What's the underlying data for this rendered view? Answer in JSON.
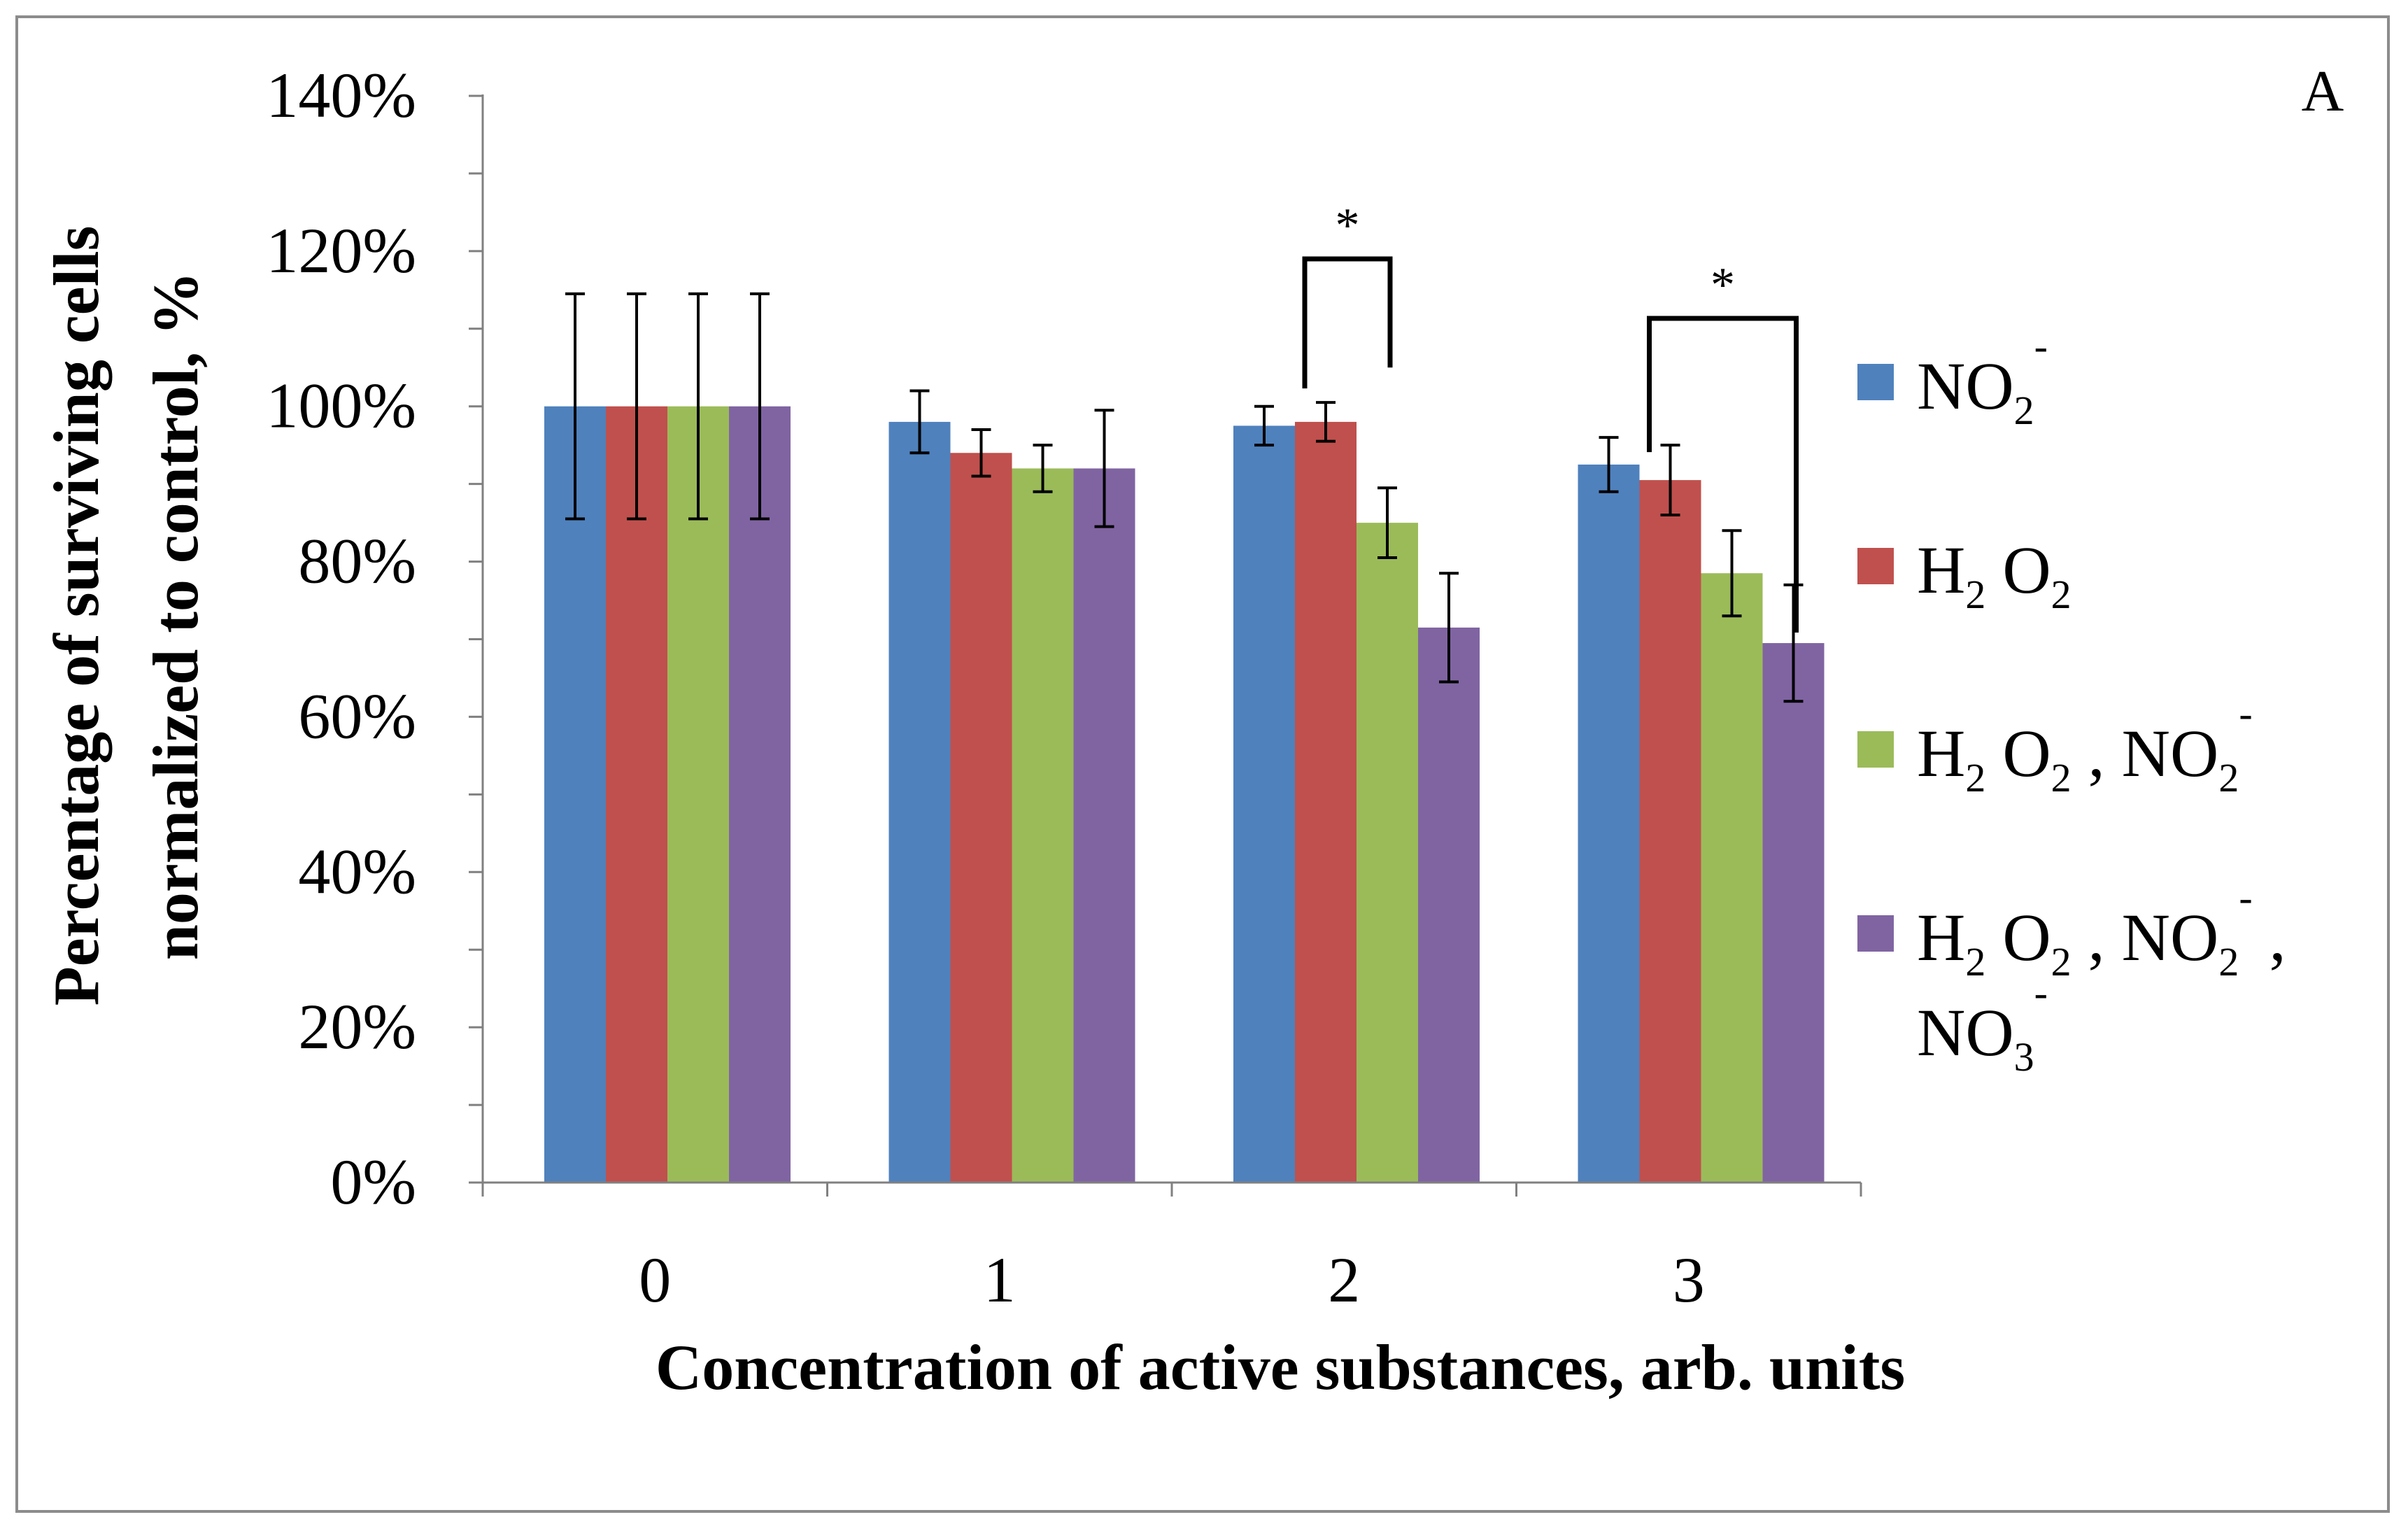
{
  "chart_data": {
    "type": "bar",
    "panel_label": "A",
    "title": "",
    "xlabel": "Concentration of active substances, arb. units",
    "ylabel_line1": "Percentage of surviving cells",
    "ylabel_line2": "normalized to control, %",
    "ylim": [
      0,
      140
    ],
    "yticks": [
      "0%",
      "20%",
      "40%",
      "60%",
      "80%",
      "100%",
      "120%",
      "140%"
    ],
    "ytick_values": [
      0,
      20,
      40,
      60,
      80,
      100,
      120,
      140
    ],
    "categories": [
      "0",
      "1",
      "2",
      "3"
    ],
    "series": [
      {
        "name": "NO2-",
        "color": "#4f81bd",
        "values": [
          100,
          98,
          97.5,
          92.5
        ],
        "errors": [
          14.5,
          4,
          2.5,
          3.5
        ]
      },
      {
        "name": "H2O2",
        "color": "#c0504d",
        "values": [
          100,
          94,
          98,
          90.5
        ],
        "errors": [
          14.5,
          3,
          2.5,
          4.5
        ]
      },
      {
        "name": "H2O2, NO2-",
        "color": "#9bbb59",
        "values": [
          100,
          92,
          85,
          78.5
        ],
        "errors": [
          14.5,
          3,
          4.5,
          5.5
        ]
      },
      {
        "name": "H2O2, NO2-, NO3-",
        "color": "#8064a2",
        "values": [
          100,
          92,
          71.5,
          69.5
        ],
        "errors": [
          14.5,
          7.5,
          7,
          7.5
        ]
      }
    ],
    "significance": [
      {
        "category": "2",
        "from_series": 1,
        "to_series": 2,
        "label": "*"
      },
      {
        "category": "3",
        "from_series": 1,
        "to_series": 3,
        "label": "*"
      }
    ],
    "legend": {
      "position": "right",
      "entries": [
        {
          "parts": [
            {
              "t": "NO"
            },
            {
              "t": "2",
              "sub": true
            },
            {
              "t": "-",
              "sup": true
            }
          ]
        },
        {
          "parts": [
            {
              "t": "H"
            },
            {
              "t": "2",
              "sub": true
            },
            {
              "t": " O"
            },
            {
              "t": "2",
              "sub": true
            }
          ]
        },
        {
          "parts": [
            {
              "t": "H"
            },
            {
              "t": "2",
              "sub": true
            },
            {
              "t": " O"
            },
            {
              "t": "2",
              "sub": true
            },
            {
              "t": " , NO"
            },
            {
              "t": "2",
              "sub": true
            },
            {
              "t": "-",
              "sup": true
            }
          ]
        },
        {
          "parts": [
            {
              "t": "H"
            },
            {
              "t": "2",
              "sub": true
            },
            {
              "t": " O"
            },
            {
              "t": "2",
              "sub": true
            },
            {
              "t": " , NO"
            },
            {
              "t": "2",
              "sub": true
            },
            {
              "t": "-",
              "sup": true
            },
            {
              "t": " ,"
            }
          ],
          "parts2": [
            {
              "t": "NO"
            },
            {
              "t": "3",
              "sub": true
            },
            {
              "t": "-",
              "sup": true
            }
          ]
        }
      ]
    }
  }
}
